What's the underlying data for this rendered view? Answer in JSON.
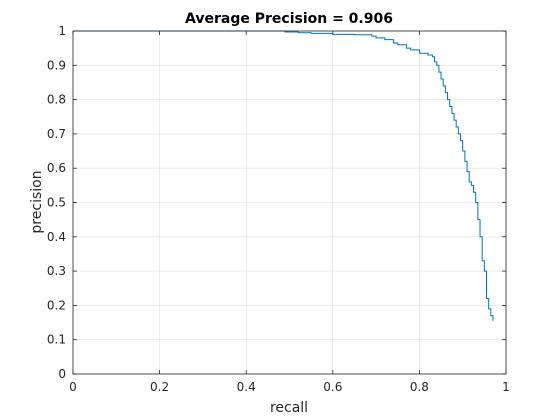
{
  "chart_data": {
    "type": "line",
    "title": "Average Precision = 0.906",
    "xlabel": "recall",
    "ylabel": "precision",
    "xlim": [
      0,
      1
    ],
    "ylim": [
      0,
      1
    ],
    "grid": true,
    "xticks": [
      0,
      0.2,
      0.4,
      0.6,
      0.8,
      1
    ],
    "xtick_labels": [
      "0",
      "0.2",
      "0.4",
      "0.6",
      "0.8",
      "1"
    ],
    "yticks": [
      0,
      0.1,
      0.2,
      0.3,
      0.4,
      0.5,
      0.6,
      0.7,
      0.8,
      0.9,
      1
    ],
    "ytick_labels": [
      "0",
      "0.1",
      "0.2",
      "0.3",
      "0.4",
      "0.5",
      "0.6",
      "0.7",
      "0.8",
      "0.9",
      "1"
    ],
    "series": [
      {
        "color": "#0072bd",
        "x": [
          0,
          0.3,
          0.49,
          0.52,
          0.55,
          0.6,
          0.65,
          0.69,
          0.7,
          0.72,
          0.74,
          0.75,
          0.77,
          0.78,
          0.8,
          0.82,
          0.83,
          0.835,
          0.84,
          0.845,
          0.85,
          0.855,
          0.86,
          0.865,
          0.87,
          0.875,
          0.88,
          0.885,
          0.89,
          0.895,
          0.9,
          0.905,
          0.91,
          0.915,
          0.92,
          0.925,
          0.93,
          0.935,
          0.94,
          0.945,
          0.95,
          0.955,
          0.96,
          0.965,
          0.97
        ],
        "y": [
          1.0,
          1.0,
          0.997,
          0.995,
          0.993,
          0.99,
          0.989,
          0.985,
          0.98,
          0.975,
          0.965,
          0.96,
          0.95,
          0.945,
          0.935,
          0.93,
          0.925,
          0.91,
          0.9,
          0.88,
          0.86,
          0.84,
          0.82,
          0.8,
          0.78,
          0.76,
          0.74,
          0.72,
          0.7,
          0.68,
          0.65,
          0.62,
          0.59,
          0.56,
          0.55,
          0.53,
          0.5,
          0.45,
          0.4,
          0.33,
          0.3,
          0.22,
          0.19,
          0.17,
          0.155
        ]
      }
    ]
  }
}
